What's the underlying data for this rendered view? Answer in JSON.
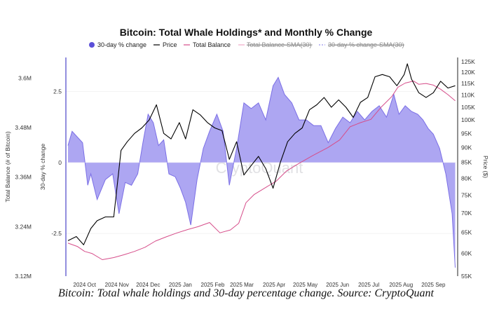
{
  "caption": "Bitcoin: Total whale holdings and 30-day percentage change. Source: CryptoQuant",
  "watermark": "CryptoQuant",
  "colors": {
    "pct_fill": "#a9a1f1",
    "pct_stroke": "#7b6fe6",
    "pct_legend": "#5b4fd8",
    "price": "#000000",
    "balance": "#d64d8a",
    "sma_balance": "#f0aac8",
    "sma_pct": "#9b93ee",
    "axis": "#4a44c9",
    "grid": "#f2f2f2"
  },
  "chart_data": {
    "type": "area+line",
    "title": "Bitcoin: Total Whale Holdings* and Monthly % Change",
    "legend": {
      "placement": "top",
      "entries": [
        "30-day % change",
        "Price",
        "Total Balance",
        "Total Balance-SMA(30)",
        "30-day % change-SMA(30)"
      ],
      "struck_entries": [
        "Total Balance-SMA(30)",
        "30-day % change-SMA(30)"
      ]
    },
    "x_ticks": [
      "2024 Oct",
      "2024 Nov",
      "2024 Dec",
      "2025 Jan",
      "2025 Feb",
      "2025 Mar",
      "2025 Apr",
      "2025 May",
      "2025 Jun",
      "2025 Jul",
      "2025 Aug",
      "2025 Sep"
    ],
    "x_range": [
      "2024-09-20",
      "2025-09-30"
    ],
    "axes": {
      "balance": {
        "label": "Total Balance (# of Bitcoin)",
        "ticks": [
          "3.6M",
          "3.48M",
          "3.36M",
          "3.24M",
          "3.12M"
        ],
        "tick_values": [
          3600000,
          3480000,
          3360000,
          3240000,
          3120000
        ],
        "range": [
          3120000,
          3650000
        ]
      },
      "pct": {
        "label": "30-day % change",
        "ticks": [
          "2.5",
          "0",
          "-2.5"
        ],
        "tick_values": [
          2.5,
          0,
          -2.5
        ],
        "range": [
          -4.0,
          3.7
        ]
      },
      "price": {
        "label": "Price ($)",
        "ticks": [
          "125K",
          "120K",
          "115K",
          "110K",
          "105K",
          "100K",
          "95K",
          "90K",
          "85K",
          "80K",
          "75K",
          "70K",
          "65K",
          "60K",
          "55K"
        ],
        "tick_values": [
          125000,
          120000,
          115000,
          110000,
          105000,
          100000,
          95000,
          90000,
          85000,
          80000,
          75000,
          70000,
          65000,
          60000,
          55000
        ],
        "scale": "log",
        "range": [
          55000,
          125000
        ]
      }
    },
    "series": [
      {
        "name": "30-day % change",
        "kind": "area",
        "axis": "pct",
        "x": [
          "2024-09-22",
          "2024-09-26",
          "2024-10-01",
          "2024-10-06",
          "2024-10-11",
          "2024-10-14",
          "2024-10-20",
          "2024-10-28",
          "2024-11-04",
          "2024-11-10",
          "2024-11-16",
          "2024-11-22",
          "2024-11-28",
          "2024-12-03",
          "2024-12-08",
          "2024-12-13",
          "2024-12-18",
          "2024-12-23",
          "2024-12-28",
          "2025-01-03",
          "2025-01-08",
          "2025-01-13",
          "2025-01-18",
          "2025-01-24",
          "2025-01-30",
          "2025-02-05",
          "2025-02-12",
          "2025-02-18",
          "2025-02-24",
          "2025-03-03",
          "2025-03-10",
          "2025-03-17",
          "2025-03-24",
          "2025-03-31",
          "2025-04-07",
          "2025-04-12",
          "2025-04-18",
          "2025-04-25",
          "2025-05-02",
          "2025-05-09",
          "2025-05-16",
          "2025-05-23",
          "2025-05-30",
          "2025-06-06",
          "2025-06-13",
          "2025-06-20",
          "2025-06-27",
          "2025-07-04",
          "2025-07-11",
          "2025-07-18",
          "2025-07-25",
          "2025-08-01",
          "2025-08-06",
          "2025-08-12",
          "2025-08-18",
          "2025-08-24",
          "2025-08-29",
          "2025-09-03",
          "2025-09-08",
          "2025-09-14",
          "2025-09-20",
          "2025-09-26",
          "2025-09-29"
        ],
        "values": [
          0.6,
          1.1,
          0.9,
          0.7,
          -0.8,
          -0.4,
          -1.3,
          -0.6,
          -0.4,
          -1.8,
          -0.7,
          -0.8,
          -0.4,
          0.7,
          1.7,
          1.4,
          0.6,
          0.8,
          -0.4,
          -0.5,
          -0.9,
          -1.4,
          -2.2,
          -0.6,
          0.5,
          1.1,
          1.7,
          1.1,
          -0.8,
          0.5,
          2.1,
          1.9,
          2.1,
          1.5,
          2.7,
          3.0,
          2.4,
          2.1,
          1.5,
          1.5,
          1.3,
          1.3,
          0.7,
          1.2,
          1.6,
          1.4,
          1.8,
          1.5,
          1.8,
          2.0,
          1.6,
          2.4,
          1.7,
          2.0,
          1.8,
          1.7,
          1.5,
          1.2,
          1.0,
          0.5,
          -0.4,
          -1.8,
          -3.7
        ]
      },
      {
        "name": "Price",
        "kind": "line",
        "axis": "price",
        "x": [
          "2024-09-22",
          "2024-09-30",
          "2024-10-07",
          "2024-10-14",
          "2024-10-20",
          "2024-10-28",
          "2024-11-05",
          "2024-11-12",
          "2024-11-18",
          "2024-11-25",
          "2024-12-02",
          "2024-12-09",
          "2024-12-16",
          "2024-12-23",
          "2024-12-30",
          "2025-01-07",
          "2025-01-13",
          "2025-01-20",
          "2025-01-27",
          "2025-02-03",
          "2025-02-10",
          "2025-02-17",
          "2025-02-24",
          "2025-03-03",
          "2025-03-10",
          "2025-03-17",
          "2025-03-24",
          "2025-03-31",
          "2025-04-07",
          "2025-04-14",
          "2025-04-21",
          "2025-04-28",
          "2025-05-05",
          "2025-05-12",
          "2025-05-19",
          "2025-05-26",
          "2025-06-02",
          "2025-06-09",
          "2025-06-16",
          "2025-06-23",
          "2025-06-30",
          "2025-07-07",
          "2025-07-14",
          "2025-07-21",
          "2025-07-28",
          "2025-08-04",
          "2025-08-11",
          "2025-08-14",
          "2025-08-18",
          "2025-08-25",
          "2025-09-01",
          "2025-09-08",
          "2025-09-15",
          "2025-09-22",
          "2025-09-29"
        ],
        "values": [
          63000,
          64000,
          62000,
          66000,
          68000,
          69000,
          69000,
          89000,
          92000,
          95000,
          97000,
          100000,
          106000,
          95000,
          93000,
          99000,
          93000,
          104000,
          102000,
          99000,
          97000,
          96000,
          86000,
          92000,
          81000,
          84000,
          87000,
          83000,
          77000,
          85000,
          92000,
          95000,
          97000,
          104000,
          106000,
          109000,
          105000,
          108000,
          105000,
          101000,
          107000,
          109000,
          118000,
          119000,
          118000,
          114000,
          119000,
          124000,
          117000,
          111000,
          109000,
          111000,
          116000,
          113000,
          114000
        ]
      },
      {
        "name": "Total Balance",
        "kind": "line",
        "axis": "balance",
        "x": [
          "2024-09-22",
          "2024-10-01",
          "2024-10-08",
          "2024-10-15",
          "2024-10-25",
          "2024-11-05",
          "2024-11-15",
          "2024-11-25",
          "2024-12-05",
          "2024-12-15",
          "2024-12-25",
          "2025-01-05",
          "2025-01-15",
          "2025-01-25",
          "2025-02-05",
          "2025-02-15",
          "2025-02-25",
          "2025-03-05",
          "2025-03-12",
          "2025-03-20",
          "2025-03-31",
          "2025-04-10",
          "2025-04-20",
          "2025-05-01",
          "2025-05-15",
          "2025-05-30",
          "2025-06-10",
          "2025-06-20",
          "2025-06-30",
          "2025-07-10",
          "2025-07-20",
          "2025-07-30",
          "2025-08-05",
          "2025-08-12",
          "2025-08-20",
          "2025-08-25",
          "2025-09-01",
          "2025-09-08",
          "2025-09-15",
          "2025-09-22",
          "2025-09-29"
        ],
        "values": [
          3200000,
          3192000,
          3180000,
          3175000,
          3160000,
          3165000,
          3172000,
          3180000,
          3190000,
          3205000,
          3215000,
          3225000,
          3233000,
          3240000,
          3250000,
          3225000,
          3232000,
          3248000,
          3298000,
          3318000,
          3335000,
          3350000,
          3375000,
          3392000,
          3412000,
          3432000,
          3450000,
          3482000,
          3492000,
          3500000,
          3530000,
          3555000,
          3578000,
          3588000,
          3593000,
          3585000,
          3587000,
          3583000,
          3573000,
          3560000,
          3545000
        ]
      }
    ],
    "grid": true
  }
}
